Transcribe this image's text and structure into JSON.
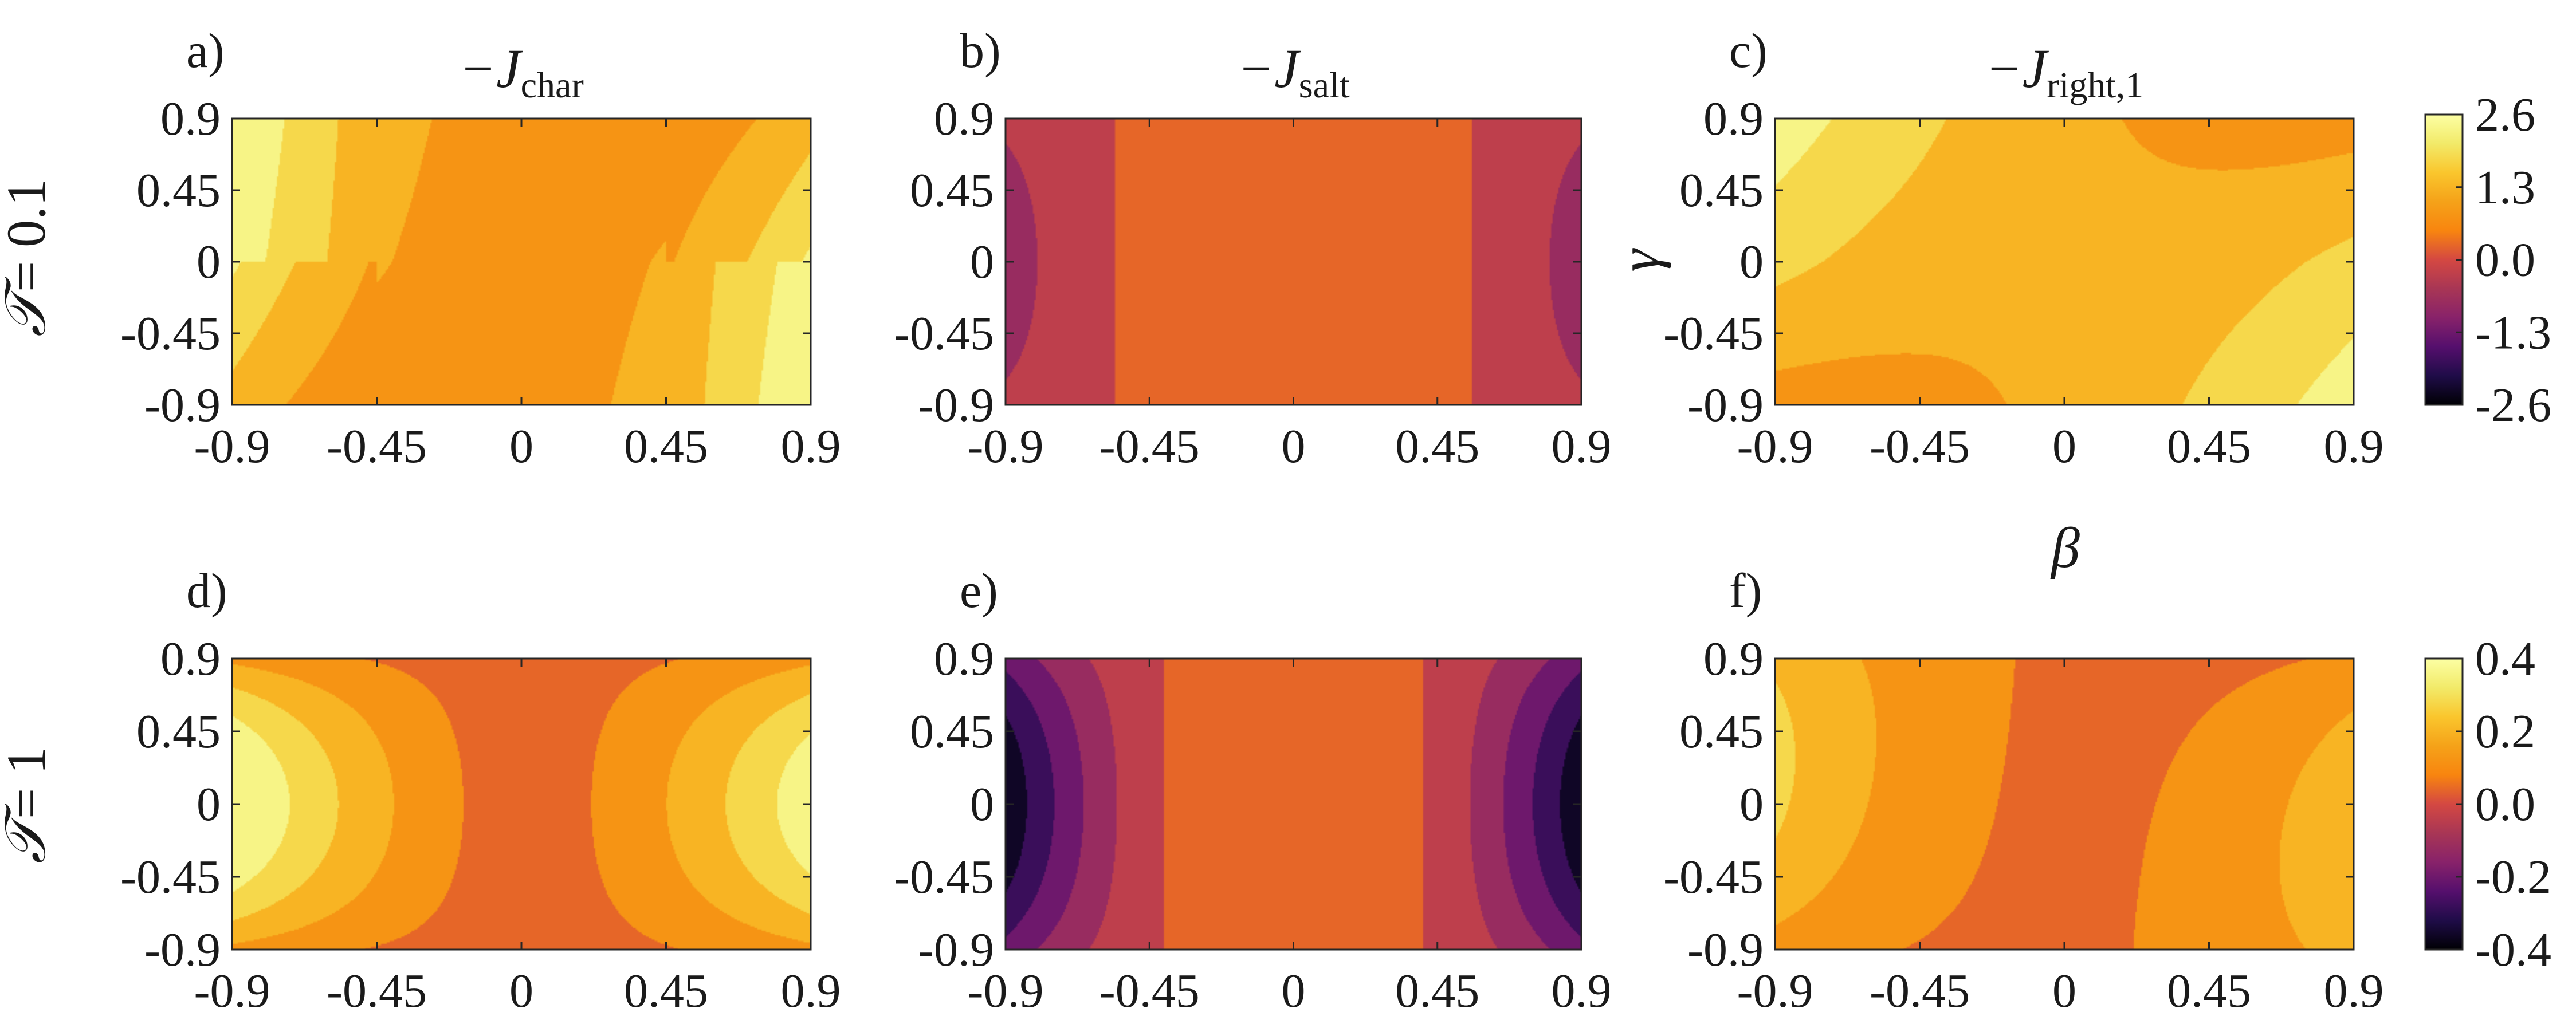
{
  "figure": {
    "row_labels": [
      {
        "sym": "𝒯",
        "val": "= 0.1"
      },
      {
        "sym": "𝒯",
        "val": "= 1"
      }
    ],
    "ylabel": "γ",
    "xlabel": "β",
    "colorbars": [
      {
        "ticks": [
          "2.6",
          "1.3",
          "0.0",
          "-1.3",
          "-2.6"
        ],
        "range": [
          -2.6,
          2.6
        ]
      },
      {
        "ticks": [
          "0.4",
          "0.2",
          "0.0",
          "-0.2",
          "-0.4"
        ],
        "range": [
          -0.4,
          0.4
        ]
      }
    ],
    "colormap": "inferno",
    "palette": [
      "#000004",
      "#1f0c48",
      "#550f6d",
      "#88226a",
      "#a83655",
      "#d44842",
      "#f8850f",
      "#f5a219",
      "#fac62d",
      "#f2ea69",
      "#fcffa4"
    ]
  },
  "chart_data": [
    {
      "type": "heatmap",
      "panel": "a)",
      "title_main": "−J",
      "title_sub": "char",
      "x_ticks": [
        "-0.9",
        "-0.45",
        "0",
        "0.45",
        "0.9"
      ],
      "y_ticks": [
        "0.9",
        "0.45",
        "0",
        "-0.45",
        "-0.9"
      ],
      "xlim": [
        -0.9,
        0.9
      ],
      "ylim": [
        -0.9,
        0.9
      ],
      "clim": [
        -2.6,
        2.6
      ],
      "field": "char",
      "levels": 10
    },
    {
      "type": "heatmap",
      "panel": "b)",
      "title_main": "−J",
      "title_sub": "salt",
      "x_ticks": [
        "-0.9",
        "-0.45",
        "0",
        "0.45",
        "0.9"
      ],
      "y_ticks": [
        "0.9",
        "0.45",
        "0",
        "-0.45",
        "-0.9"
      ],
      "xlim": [
        -0.9,
        0.9
      ],
      "ylim": [
        -0.9,
        0.9
      ],
      "clim": [
        -2.6,
        2.6
      ],
      "field": "salt",
      "levels": 10
    },
    {
      "type": "heatmap",
      "panel": "c)",
      "title_main": "−J",
      "title_sub": "right,1",
      "x_ticks": [
        "-0.9",
        "-0.45",
        "0",
        "0.45",
        "0.9"
      ],
      "y_ticks": [
        "0.9",
        "0.45",
        "0",
        "-0.45",
        "-0.9"
      ],
      "xlim": [
        -0.9,
        0.9
      ],
      "ylim": [
        -0.9,
        0.9
      ],
      "clim": [
        -2.6,
        2.6
      ],
      "field": "right",
      "levels": 10
    },
    {
      "type": "heatmap",
      "panel": "d)",
      "title_main": "",
      "title_sub": "",
      "x_ticks": [
        "-0.9",
        "-0.45",
        "0",
        "0.45",
        "0.9"
      ],
      "y_ticks": [
        "0.9",
        "0.45",
        "0",
        "-0.45",
        "-0.9"
      ],
      "xlim": [
        -0.9,
        0.9
      ],
      "ylim": [
        -0.9,
        0.9
      ],
      "clim": [
        -0.4,
        0.4
      ],
      "field": "char",
      "levels": 10
    },
    {
      "type": "heatmap",
      "panel": "e)",
      "title_main": "",
      "title_sub": "",
      "x_ticks": [
        "-0.9",
        "-0.45",
        "0",
        "0.45",
        "0.9"
      ],
      "y_ticks": [
        "0.9",
        "0.45",
        "0",
        "-0.45",
        "-0.9"
      ],
      "xlim": [
        -0.9,
        0.9
      ],
      "ylim": [
        -0.9,
        0.9
      ],
      "clim": [
        -0.4,
        0.4
      ],
      "field": "salt",
      "levels": 10
    },
    {
      "type": "heatmap",
      "panel": "f)",
      "title_main": "",
      "title_sub": "",
      "x_ticks": [
        "-0.9",
        "-0.45",
        "0",
        "0.45",
        "0.9"
      ],
      "y_ticks": [
        "0.9",
        "0.45",
        "0",
        "-0.45",
        "-0.9"
      ],
      "xlim": [
        -0.9,
        0.9
      ],
      "ylim": [
        -0.9,
        0.9
      ],
      "clim": [
        -0.4,
        0.4
      ],
      "field": "right",
      "levels": 10
    }
  ]
}
